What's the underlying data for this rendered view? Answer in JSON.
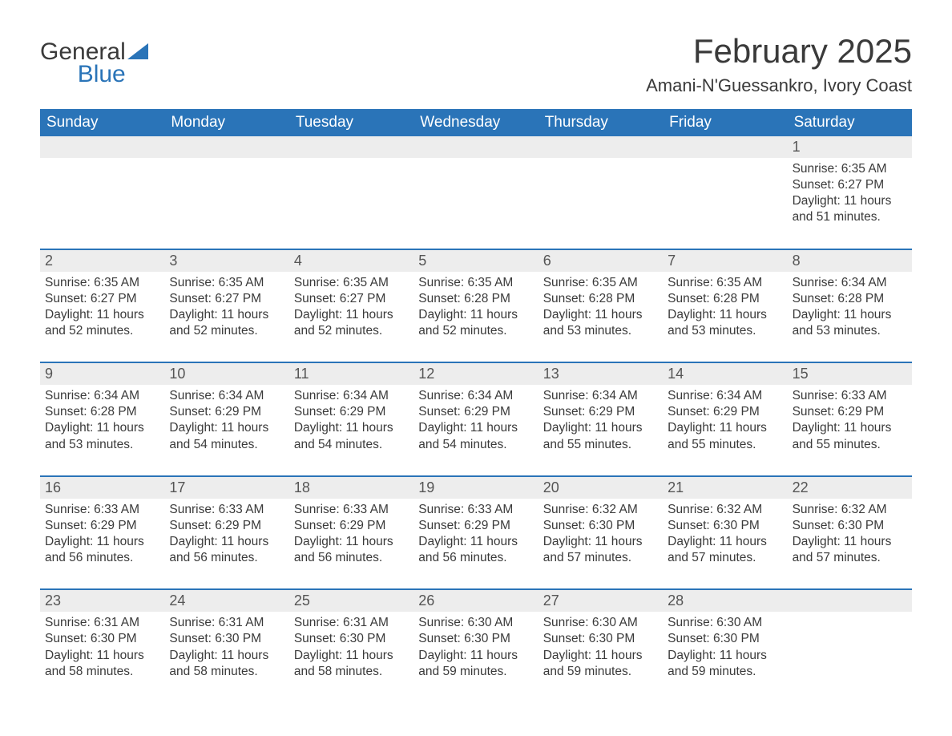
{
  "brand": {
    "part1": "General",
    "part2": "Blue",
    "accent": "#2a74b8"
  },
  "title": "February 2025",
  "location": "Amani-N'Guessankro, Ivory Coast",
  "colors": {
    "header_bg": "#2a74b8",
    "header_text": "#ffffff",
    "daynum_bg": "#ededed",
    "body_text": "#3a3a3a",
    "rule": "#2a74b8",
    "page_bg": "#ffffff"
  },
  "fonts": {
    "title_size_pt": 42,
    "location_size_pt": 22,
    "weekday_size_pt": 19,
    "daynum_size_pt": 18,
    "body_size_pt": 15.5,
    "family": "Arial"
  },
  "layout": {
    "columns": 7,
    "leading_blanks": 6
  },
  "weekdays": [
    "Sunday",
    "Monday",
    "Tuesday",
    "Wednesday",
    "Thursday",
    "Friday",
    "Saturday"
  ],
  "days": [
    {
      "n": 1,
      "sunrise": "6:35 AM",
      "sunset": "6:27 PM",
      "daylight": "11 hours and 51 minutes."
    },
    {
      "n": 2,
      "sunrise": "6:35 AM",
      "sunset": "6:27 PM",
      "daylight": "11 hours and 52 minutes."
    },
    {
      "n": 3,
      "sunrise": "6:35 AM",
      "sunset": "6:27 PM",
      "daylight": "11 hours and 52 minutes."
    },
    {
      "n": 4,
      "sunrise": "6:35 AM",
      "sunset": "6:27 PM",
      "daylight": "11 hours and 52 minutes."
    },
    {
      "n": 5,
      "sunrise": "6:35 AM",
      "sunset": "6:28 PM",
      "daylight": "11 hours and 52 minutes."
    },
    {
      "n": 6,
      "sunrise": "6:35 AM",
      "sunset": "6:28 PM",
      "daylight": "11 hours and 53 minutes."
    },
    {
      "n": 7,
      "sunrise": "6:35 AM",
      "sunset": "6:28 PM",
      "daylight": "11 hours and 53 minutes."
    },
    {
      "n": 8,
      "sunrise": "6:34 AM",
      "sunset": "6:28 PM",
      "daylight": "11 hours and 53 minutes."
    },
    {
      "n": 9,
      "sunrise": "6:34 AM",
      "sunset": "6:28 PM",
      "daylight": "11 hours and 53 minutes."
    },
    {
      "n": 10,
      "sunrise": "6:34 AM",
      "sunset": "6:29 PM",
      "daylight": "11 hours and 54 minutes."
    },
    {
      "n": 11,
      "sunrise": "6:34 AM",
      "sunset": "6:29 PM",
      "daylight": "11 hours and 54 minutes."
    },
    {
      "n": 12,
      "sunrise": "6:34 AM",
      "sunset": "6:29 PM",
      "daylight": "11 hours and 54 minutes."
    },
    {
      "n": 13,
      "sunrise": "6:34 AM",
      "sunset": "6:29 PM",
      "daylight": "11 hours and 55 minutes."
    },
    {
      "n": 14,
      "sunrise": "6:34 AM",
      "sunset": "6:29 PM",
      "daylight": "11 hours and 55 minutes."
    },
    {
      "n": 15,
      "sunrise": "6:33 AM",
      "sunset": "6:29 PM",
      "daylight": "11 hours and 55 minutes."
    },
    {
      "n": 16,
      "sunrise": "6:33 AM",
      "sunset": "6:29 PM",
      "daylight": "11 hours and 56 minutes."
    },
    {
      "n": 17,
      "sunrise": "6:33 AM",
      "sunset": "6:29 PM",
      "daylight": "11 hours and 56 minutes."
    },
    {
      "n": 18,
      "sunrise": "6:33 AM",
      "sunset": "6:29 PM",
      "daylight": "11 hours and 56 minutes."
    },
    {
      "n": 19,
      "sunrise": "6:33 AM",
      "sunset": "6:29 PM",
      "daylight": "11 hours and 56 minutes."
    },
    {
      "n": 20,
      "sunrise": "6:32 AM",
      "sunset": "6:30 PM",
      "daylight": "11 hours and 57 minutes."
    },
    {
      "n": 21,
      "sunrise": "6:32 AM",
      "sunset": "6:30 PM",
      "daylight": "11 hours and 57 minutes."
    },
    {
      "n": 22,
      "sunrise": "6:32 AM",
      "sunset": "6:30 PM",
      "daylight": "11 hours and 57 minutes."
    },
    {
      "n": 23,
      "sunrise": "6:31 AM",
      "sunset": "6:30 PM",
      "daylight": "11 hours and 58 minutes."
    },
    {
      "n": 24,
      "sunrise": "6:31 AM",
      "sunset": "6:30 PM",
      "daylight": "11 hours and 58 minutes."
    },
    {
      "n": 25,
      "sunrise": "6:31 AM",
      "sunset": "6:30 PM",
      "daylight": "11 hours and 58 minutes."
    },
    {
      "n": 26,
      "sunrise": "6:30 AM",
      "sunset": "6:30 PM",
      "daylight": "11 hours and 59 minutes."
    },
    {
      "n": 27,
      "sunrise": "6:30 AM",
      "sunset": "6:30 PM",
      "daylight": "11 hours and 59 minutes."
    },
    {
      "n": 28,
      "sunrise": "6:30 AM",
      "sunset": "6:30 PM",
      "daylight": "11 hours and 59 minutes."
    }
  ],
  "labels": {
    "sunrise": "Sunrise:",
    "sunset": "Sunset:",
    "daylight": "Daylight:"
  }
}
